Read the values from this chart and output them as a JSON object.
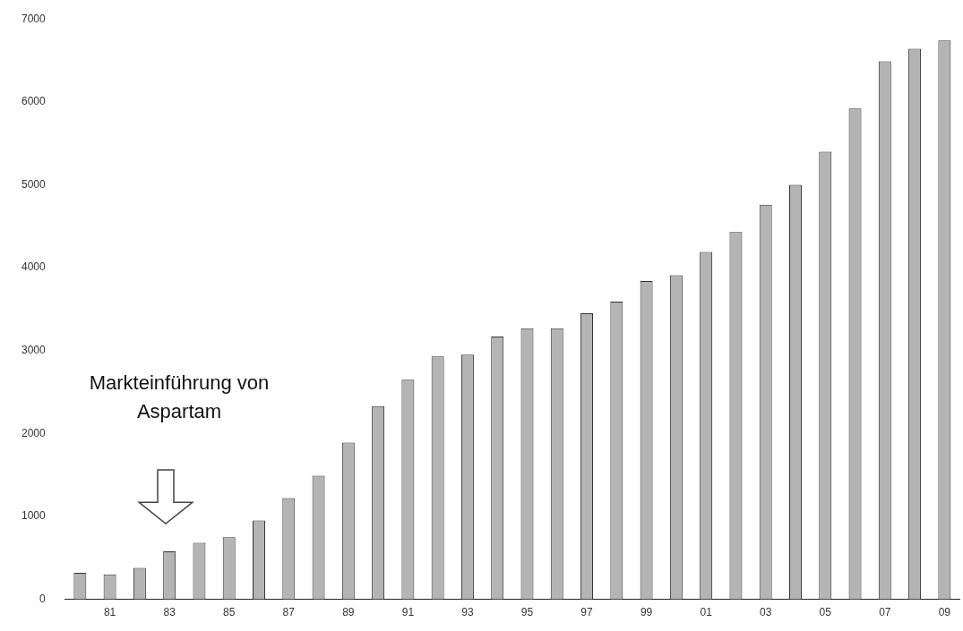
{
  "chart_data": {
    "type": "bar",
    "categories": [
      null,
      "81",
      null,
      "83",
      null,
      "85",
      null,
      "87",
      null,
      "89",
      null,
      "91",
      null,
      "93",
      null,
      "95",
      null,
      "97",
      null,
      "99",
      null,
      "01",
      null,
      "03",
      null,
      "05",
      null,
      "07",
      null,
      "09"
    ],
    "values": [
      320,
      300,
      380,
      580,
      680,
      750,
      950,
      1220,
      1490,
      1890,
      2330,
      2650,
      2930,
      2950,
      3170,
      3270,
      3270,
      3450,
      3590,
      3840,
      3910,
      4190,
      4430,
      4760,
      5000,
      5400,
      5920,
      6490,
      6640,
      6740
    ],
    "color": "#b4b4b4",
    "ylim": [
      0,
      7000
    ],
    "yticks": [
      0,
      1000,
      2000,
      3000,
      4000,
      5000,
      6000,
      7000
    ],
    "grid": false,
    "legend": false,
    "annotations": [
      "Markteinführung von Aspartam"
    ]
  }
}
